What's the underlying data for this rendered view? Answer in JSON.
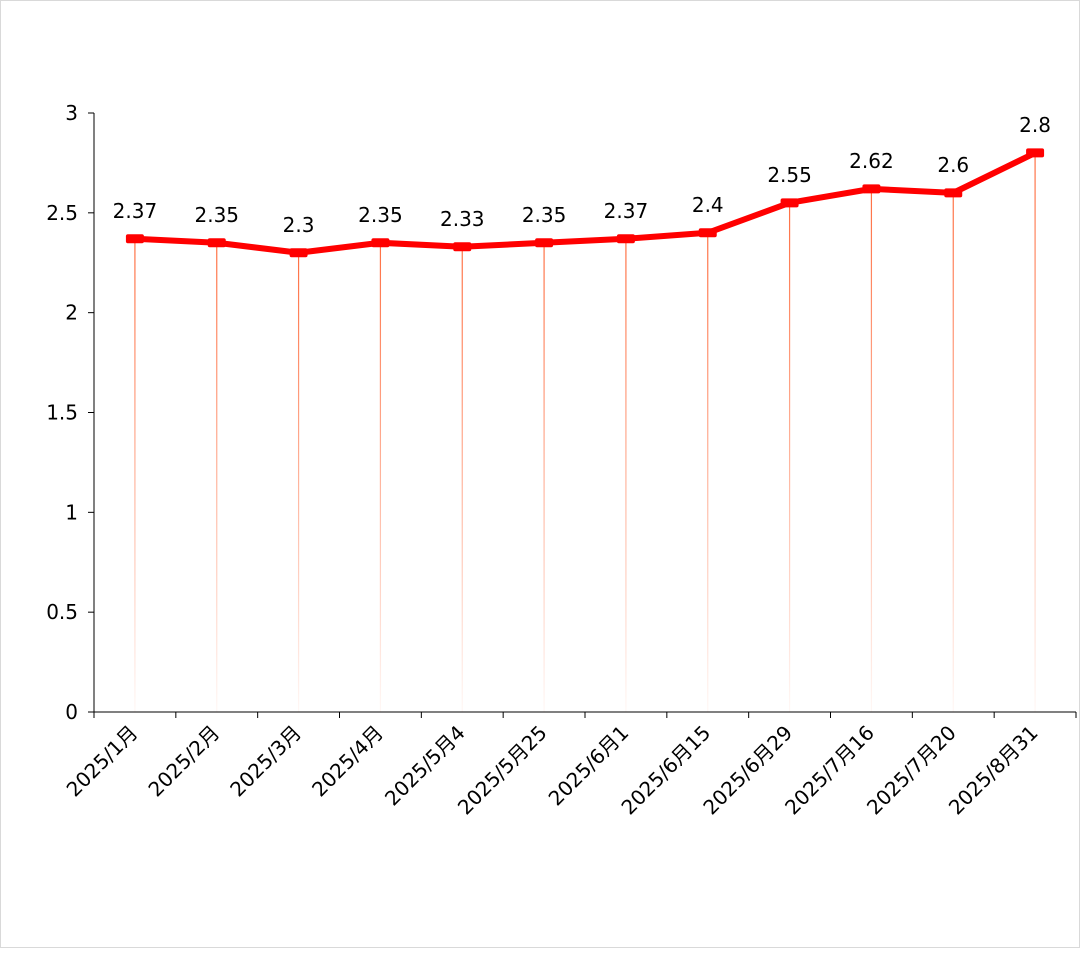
{
  "chart_data": {
    "type": "line",
    "title": "",
    "xlabel": "",
    "ylabel": "",
    "categories": [
      "2025/1月",
      "2025/2月",
      "2025/3月",
      "2025/4月",
      "2025/5月4",
      "2025/5月25",
      "2025/6月1",
      "2025/6月15",
      "2025/6月29",
      "2025/7月16",
      "2025/7月20",
      "2025/8月31"
    ],
    "series": [
      {
        "values": [
          2.37,
          2.35,
          2.3,
          2.35,
          2.33,
          2.35,
          2.37,
          2.4,
          2.55,
          2.62,
          2.6,
          2.8
        ]
      }
    ],
    "data_labels": [
      "2.37",
      "2.35",
      "2.3",
      "2.35",
      "2.33",
      "2.35",
      "2.37",
      "2.4",
      "2.55",
      "2.62",
      "2.6",
      "2.8"
    ],
    "ylim": [
      0,
      3
    ],
    "yticks": [
      "0",
      "0.5",
      "1",
      "1.5",
      "2",
      "2.5",
      "3"
    ],
    "grid": false,
    "drop_lines": true,
    "colors": {
      "line": "#ff0000",
      "drop_line": "#ff7043",
      "axis": "#000000"
    }
  }
}
